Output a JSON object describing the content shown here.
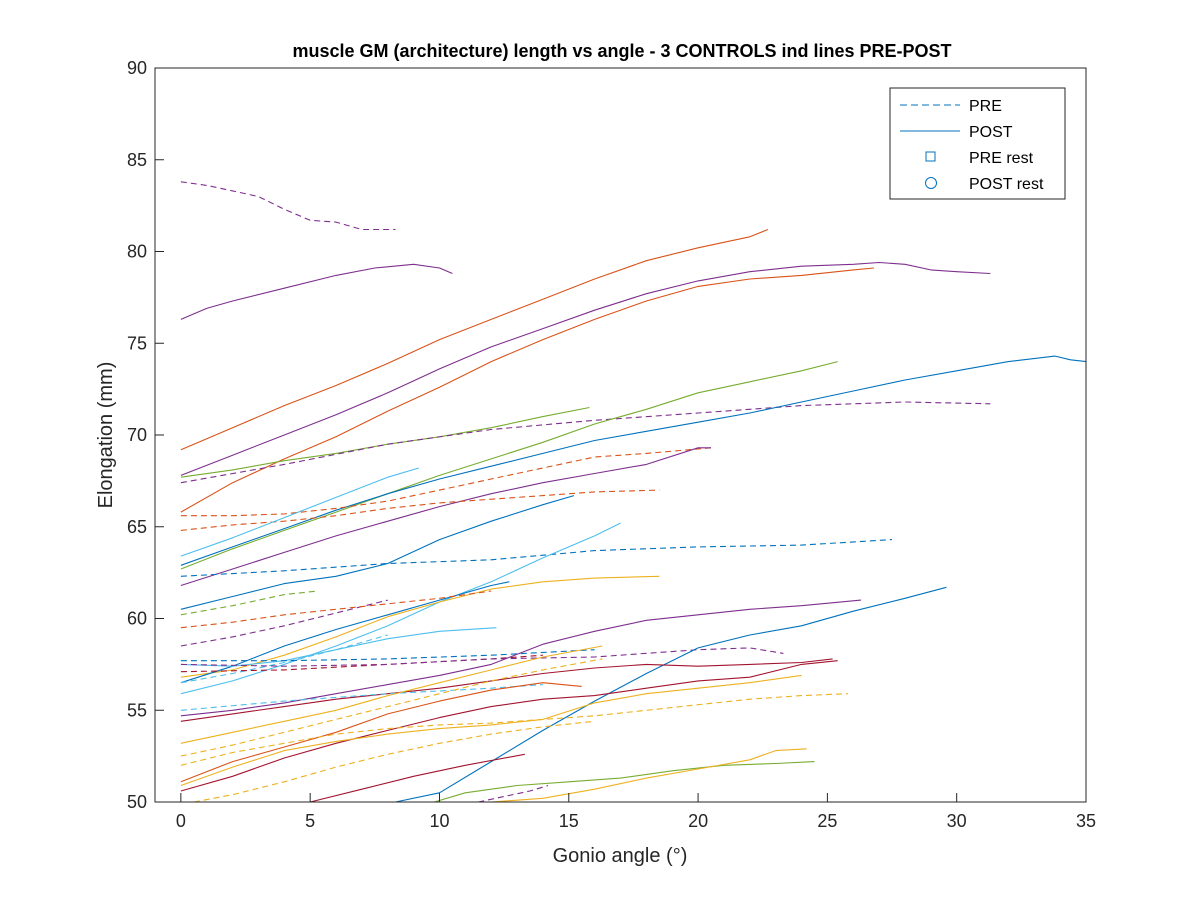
{
  "chart_data": {
    "type": "line",
    "title": "muscle GM (architecture) length vs angle - 3 CONTROLS ind lines PRE-POST",
    "xlabel": "Gonio angle (°)",
    "ylabel": "Elongation (mm)",
    "xlim": [
      -1,
      35
    ],
    "ylim": [
      50,
      90
    ],
    "xticks": [
      0,
      5,
      10,
      15,
      20,
      25,
      30,
      35
    ],
    "yticks": [
      50,
      55,
      60,
      65,
      70,
      75,
      80,
      85,
      90
    ],
    "grid": false,
    "legend": {
      "position": "top-right",
      "entries": [
        {
          "label": "PRE",
          "marker": "dashed-line",
          "color": "#0072BD"
        },
        {
          "label": "POST",
          "marker": "solid-line",
          "color": "#0072BD"
        },
        {
          "label": "PRE rest",
          "marker": "square",
          "color": "#0072BD"
        },
        {
          "label": "POST rest",
          "marker": "circle",
          "color": "#0072BD"
        }
      ]
    },
    "colors": {
      "blue": "#0072BD",
      "orange": "#D95319",
      "yellow": "#EDB120",
      "purple": "#7E2F8E",
      "green": "#77AC30",
      "cyan": "#4DBEEE",
      "darkred": "#A2142F"
    },
    "series": [
      {
        "name": "purple PRE high",
        "color": "purple",
        "style": "dashed",
        "x": [
          0,
          1,
          2,
          3,
          4,
          5,
          6,
          7,
          8.3
        ],
        "y": [
          83.8,
          83.6,
          83.3,
          83.0,
          82.3,
          81.7,
          81.6,
          81.2,
          81.2
        ]
      },
      {
        "name": "purple POST top",
        "color": "purple",
        "style": "solid",
        "x": [
          0,
          1,
          2,
          4,
          6,
          7.5,
          9,
          10,
          10.5
        ],
        "y": [
          76.3,
          76.9,
          77.3,
          78.0,
          78.7,
          79.1,
          79.3,
          79.1,
          78.8
        ]
      },
      {
        "name": "orange POST a",
        "color": "orange",
        "style": "solid",
        "x": [
          0,
          2,
          4,
          6,
          8,
          10,
          12,
          14,
          16,
          18,
          20,
          22,
          22.7
        ],
        "y": [
          69.2,
          70.4,
          71.6,
          72.7,
          73.9,
          75.2,
          76.3,
          77.4,
          78.5,
          79.5,
          80.2,
          80.8,
          81.2
        ]
      },
      {
        "name": "purple POST b",
        "color": "purple",
        "style": "solid",
        "x": [
          0,
          2,
          4,
          6,
          8,
          10,
          12,
          14,
          16,
          18,
          20,
          22,
          24,
          26,
          27,
          28,
          29,
          30,
          31.3
        ],
        "y": [
          67.8,
          68.9,
          70.0,
          71.1,
          72.3,
          73.6,
          74.8,
          75.8,
          76.8,
          77.7,
          78.4,
          78.9,
          79.2,
          79.3,
          79.4,
          79.3,
          79.0,
          78.9,
          78.8
        ]
      },
      {
        "name": "orange POST b",
        "color": "orange",
        "style": "solid",
        "x": [
          0,
          2,
          4,
          6,
          8,
          10,
          12,
          14,
          16,
          18,
          20,
          22,
          24,
          26,
          26.8
        ],
        "y": [
          65.8,
          67.4,
          68.7,
          69.9,
          71.3,
          72.6,
          74.0,
          75.2,
          76.3,
          77.3,
          78.1,
          78.5,
          78.7,
          79.0,
          79.1
        ]
      },
      {
        "name": "green POST a",
        "color": "green",
        "style": "solid",
        "x": [
          0,
          2,
          4,
          6,
          8,
          10,
          12,
          14,
          15.8
        ],
        "y": [
          67.7,
          68.1,
          68.6,
          69.0,
          69.5,
          69.9,
          70.4,
          71.0,
          71.5
        ]
      },
      {
        "name": "purple PRE a",
        "color": "purple",
        "style": "dashed",
        "x": [
          0,
          4,
          8,
          12,
          16,
          20,
          24,
          28,
          31.3
        ],
        "y": [
          67.4,
          68.4,
          69.5,
          70.3,
          70.8,
          71.2,
          71.6,
          71.8,
          71.7
        ]
      },
      {
        "name": "green POST b",
        "color": "green",
        "style": "solid",
        "x": [
          0,
          2,
          4,
          6,
          8,
          10,
          12,
          14,
          16,
          18,
          20,
          22,
          24,
          25.4
        ],
        "y": [
          62.7,
          63.8,
          64.8,
          65.8,
          66.8,
          67.8,
          68.7,
          69.6,
          70.6,
          71.4,
          72.3,
          72.9,
          73.5,
          74.0
        ]
      },
      {
        "name": "blue POST a",
        "color": "blue",
        "style": "solid",
        "x": [
          0,
          2,
          4,
          6,
          8,
          10,
          12,
          14,
          16,
          18,
          20,
          22,
          24,
          26,
          28,
          30,
          32,
          33.8,
          34.4,
          35
        ],
        "y": [
          62.9,
          63.9,
          64.9,
          65.9,
          66.8,
          67.6,
          68.3,
          69.0,
          69.7,
          70.2,
          70.7,
          71.2,
          71.8,
          72.4,
          73.0,
          73.5,
          74.0,
          74.3,
          74.1,
          74.0
        ]
      },
      {
        "name": "orange PRE a",
        "color": "orange",
        "style": "dashed",
        "x": [
          0,
          2,
          4,
          6,
          8,
          10,
          12,
          14,
          16,
          18,
          20.5
        ],
        "y": [
          65.6,
          65.6,
          65.7,
          66.0,
          66.4,
          67.0,
          67.6,
          68.2,
          68.8,
          69.0,
          69.3
        ]
      },
      {
        "name": "purple POST c",
        "color": "purple",
        "style": "solid",
        "x": [
          0,
          2,
          4,
          6,
          8,
          10,
          12,
          14,
          16,
          18,
          20,
          20.5
        ],
        "y": [
          61.8,
          62.7,
          63.6,
          64.5,
          65.3,
          66.1,
          66.8,
          67.4,
          67.9,
          68.4,
          69.3,
          69.3
        ]
      },
      {
        "name": "orange PRE b",
        "color": "orange",
        "style": "dashed",
        "x": [
          0,
          2,
          4,
          6,
          8,
          10,
          12,
          14,
          16,
          18.5
        ],
        "y": [
          64.8,
          65.1,
          65.3,
          65.6,
          66.0,
          66.3,
          66.5,
          66.7,
          66.9,
          67.0
        ]
      },
      {
        "name": "cyan POST a",
        "color": "cyan",
        "style": "solid",
        "x": [
          0,
          2,
          4,
          6,
          8,
          9.2
        ],
        "y": [
          63.4,
          64.4,
          65.5,
          66.6,
          67.7,
          68.2
        ]
      },
      {
        "name": "blue POST b",
        "color": "blue",
        "style": "solid",
        "x": [
          0,
          2,
          4,
          6,
          8,
          10,
          12,
          14,
          15.2
        ],
        "y": [
          60.5,
          61.2,
          61.9,
          62.3,
          63.0,
          64.3,
          65.3,
          66.2,
          66.7
        ]
      },
      {
        "name": "blue PRE a",
        "color": "blue",
        "style": "dashed",
        "x": [
          0,
          4,
          8,
          12,
          16,
          20,
          24,
          27.5
        ],
        "y": [
          62.3,
          62.6,
          63.0,
          63.2,
          63.7,
          63.9,
          64.0,
          64.3
        ]
      },
      {
        "name": "cyan POST b",
        "color": "cyan",
        "style": "solid",
        "x": [
          0,
          2,
          4,
          6,
          8,
          10,
          12,
          14,
          16,
          17
        ],
        "y": [
          55.9,
          56.6,
          57.5,
          58.5,
          59.6,
          60.9,
          62.0,
          63.3,
          64.5,
          65.2
        ]
      },
      {
        "name": "green PRE a",
        "color": "green",
        "style": "dashed",
        "x": [
          0,
          2,
          4,
          5.3
        ],
        "y": [
          60.2,
          60.7,
          61.3,
          61.5
        ]
      },
      {
        "name": "yellow POST a",
        "color": "yellow",
        "style": "solid",
        "x": [
          0,
          2,
          4,
          6,
          8,
          10,
          12,
          14,
          16,
          18.5
        ],
        "y": [
          56.8,
          57.2,
          58.0,
          59.0,
          60.1,
          60.9,
          61.6,
          62.0,
          62.2,
          62.3
        ]
      },
      {
        "name": "blue POST c",
        "color": "blue",
        "style": "solid",
        "x": [
          0,
          2,
          4,
          6,
          8,
          10,
          12,
          12.7
        ],
        "y": [
          56.5,
          57.4,
          58.5,
          59.4,
          60.2,
          61.0,
          61.8,
          62.0
        ]
      },
      {
        "name": "purple PRE b",
        "color": "purple",
        "style": "dashed",
        "x": [
          0,
          2,
          4,
          6,
          8
        ],
        "y": [
          58.5,
          59.0,
          59.6,
          60.3,
          61.0
        ]
      },
      {
        "name": "orange PRE c",
        "color": "orange",
        "style": "dashed",
        "x": [
          0,
          2,
          4,
          6,
          8,
          10,
          12
        ],
        "y": [
          59.5,
          59.8,
          60.2,
          60.5,
          60.8,
          61.1,
          61.5
        ]
      },
      {
        "name": "cyan POST c",
        "color": "cyan",
        "style": "solid",
        "x": [
          0,
          2,
          4,
          6,
          8,
          10,
          12.2
        ],
        "y": [
          57.5,
          57.4,
          57.7,
          58.3,
          58.9,
          59.3,
          59.5
        ]
      },
      {
        "name": "cyan PRE a",
        "color": "cyan",
        "style": "dashed",
        "x": [
          0,
          2,
          4,
          6,
          8
        ],
        "y": [
          56.5,
          57.0,
          57.6,
          58.3,
          59.1
        ]
      },
      {
        "name": "blue PRE b",
        "color": "blue",
        "style": "dashed",
        "x": [
          0,
          4,
          8,
          12,
          16
        ],
        "y": [
          57.7,
          57.7,
          57.8,
          58.0,
          58.3
        ]
      },
      {
        "name": "darkred PRE a",
        "color": "darkred",
        "style": "dashed",
        "x": [
          0,
          4,
          8,
          12,
          14
        ],
        "y": [
          57.1,
          57.2,
          57.5,
          57.8,
          58.0
        ]
      },
      {
        "name": "purple PRE c",
        "color": "purple",
        "style": "dashed",
        "x": [
          0,
          4,
          8,
          12,
          16,
          20,
          22,
          23.3
        ],
        "y": [
          57.5,
          57.4,
          57.5,
          57.8,
          57.9,
          58.3,
          58.4,
          58.1
        ]
      },
      {
        "name": "purple POST d",
        "color": "purple",
        "style": "solid",
        "x": [
          0,
          2,
          4,
          6,
          8,
          10,
          12,
          14,
          16,
          18,
          20,
          22,
          24,
          26.3
        ],
        "y": [
          54.7,
          55.0,
          55.4,
          55.9,
          56.4,
          56.9,
          57.5,
          58.6,
          59.3,
          59.9,
          60.2,
          60.5,
          60.7,
          61.0
        ]
      },
      {
        "name": "blue POST d",
        "color": "blue",
        "style": "solid",
        "x": [
          8.3,
          10,
          12,
          14,
          16,
          18,
          20,
          22,
          24,
          26,
          28,
          29.6
        ],
        "y": [
          50.0,
          50.5,
          52.2,
          53.9,
          55.5,
          57.0,
          58.4,
          59.1,
          59.6,
          60.4,
          61.1,
          61.7
        ]
      },
      {
        "name": "darkred POST a",
        "color": "darkred",
        "style": "solid",
        "x": [
          0,
          2,
          4,
          6,
          8,
          10,
          12,
          14,
          16,
          18,
          20,
          22,
          24,
          25.2
        ],
        "y": [
          54.4,
          54.8,
          55.2,
          55.6,
          55.9,
          56.2,
          56.6,
          57.0,
          57.3,
          57.5,
          57.4,
          57.5,
          57.6,
          57.8
        ]
      },
      {
        "name": "cyan PRE b",
        "color": "cyan",
        "style": "dashed",
        "x": [
          0,
          4,
          8,
          12,
          14
        ],
        "y": [
          55.0,
          55.5,
          55.9,
          56.2,
          56.4
        ]
      },
      {
        "name": "yellow POST b",
        "color": "yellow",
        "style": "solid",
        "x": [
          0,
          2,
          4,
          6,
          8,
          10,
          12,
          14,
          16.3
        ],
        "y": [
          53.2,
          53.8,
          54.4,
          55.0,
          55.8,
          56.5,
          57.2,
          57.9,
          58.5
        ]
      },
      {
        "name": "yellow PRE a",
        "color": "yellow",
        "style": "dashed",
        "x": [
          0,
          2,
          4,
          6,
          8,
          10,
          12,
          14,
          16.3
        ],
        "y": [
          52.5,
          53.1,
          53.8,
          54.5,
          55.2,
          55.9,
          56.6,
          57.2,
          57.8
        ]
      },
      {
        "name": "orange POST c",
        "color": "orange",
        "style": "solid",
        "x": [
          0,
          2,
          4,
          6,
          8,
          10,
          12,
          14,
          15.5
        ],
        "y": [
          51.1,
          52.2,
          53.0,
          53.8,
          54.8,
          55.5,
          56.1,
          56.5,
          56.3
        ]
      },
      {
        "name": "darkred POST b",
        "color": "darkred",
        "style": "solid",
        "x": [
          0,
          2,
          4,
          6,
          8,
          10,
          12,
          14,
          16,
          18,
          20,
          22,
          24,
          25.4
        ],
        "y": [
          50.6,
          51.4,
          52.4,
          53.2,
          53.9,
          54.6,
          55.2,
          55.6,
          55.8,
          56.2,
          56.6,
          56.8,
          57.5,
          57.7
        ]
      },
      {
        "name": "yellow POST c",
        "color": "yellow",
        "style": "solid",
        "x": [
          0,
          2,
          4,
          6,
          8,
          10,
          12,
          14,
          16,
          18,
          20,
          22,
          24
        ],
        "y": [
          50.9,
          51.9,
          52.8,
          53.3,
          53.7,
          54.0,
          54.2,
          54.5,
          55.4,
          55.9,
          56.2,
          56.5,
          56.9
        ]
      },
      {
        "name": "yellow PRE b",
        "color": "yellow",
        "style": "dashed",
        "x": [
          0,
          2,
          4,
          6,
          8,
          10,
          12,
          14,
          16,
          18,
          20,
          22,
          24,
          25.8
        ],
        "y": [
          52.0,
          52.7,
          53.2,
          53.7,
          54.0,
          54.2,
          54.3,
          54.5,
          54.7,
          55.0,
          55.3,
          55.6,
          55.8,
          55.9
        ]
      },
      {
        "name": "yellow PRE c",
        "color": "yellow",
        "style": "dashed",
        "x": [
          0.5,
          2,
          4,
          6,
          8,
          10,
          12,
          14,
          16
        ],
        "y": [
          50.0,
          50.4,
          51.1,
          51.9,
          52.6,
          53.2,
          53.7,
          54.1,
          54.4
        ]
      },
      {
        "name": "darkred POST c",
        "color": "darkred",
        "style": "solid",
        "x": [
          5,
          7,
          9,
          11,
          13.3
        ],
        "y": [
          50.0,
          50.7,
          51.4,
          52.0,
          52.6
        ]
      },
      {
        "name": "green POST c",
        "color": "green",
        "style": "solid",
        "x": [
          9.8,
          11,
          13,
          15,
          17,
          19,
          21,
          23,
          24.5
        ],
        "y": [
          50.0,
          50.5,
          50.9,
          51.1,
          51.3,
          51.7,
          52.0,
          52.1,
          52.2
        ]
      },
      {
        "name": "yellow POST d",
        "color": "yellow",
        "style": "solid",
        "x": [
          10.5,
          12,
          14,
          16,
          18,
          20,
          22,
          23,
          24.2
        ],
        "y": [
          50.0,
          50.0,
          50.2,
          50.7,
          51.3,
          51.8,
          52.3,
          52.8,
          52.9
        ]
      },
      {
        "name": "purple PRE d",
        "color": "purple",
        "style": "dashed",
        "x": [
          11.5,
          12.5,
          13.5,
          14.2
        ],
        "y": [
          50.0,
          50.3,
          50.6,
          50.9
        ]
      }
    ]
  }
}
